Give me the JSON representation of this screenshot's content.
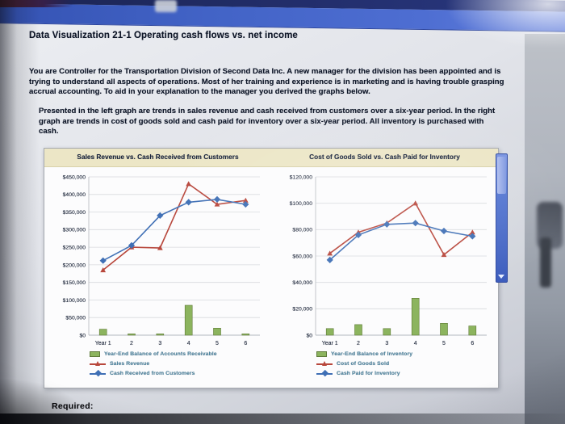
{
  "page": {
    "title": "Data Visualization 21-1 Operating cash flows vs. net income",
    "paragraph_1": "You are Controller for the Transportation Division of Second Data Inc. A new manager for the division has been appointed and is trying to understand all aspects of operations. Most of her training and experience is in marketing and is having trouble grasping accrual accounting. To aid in your explanation to the manager you derived the graphs below.",
    "paragraph_2": "Presented in the left graph are trends in sales revenue and cash received from customers over a six-year period. In the right graph are trends in cost of goods sold and cash paid for inventory over a six-year period. All inventory is purchased with cash.",
    "required_label": "Required:"
  },
  "chart_data": [
    {
      "type": "combo (bar + line)",
      "title": "Sales Revenue vs. Cash Received from Customers",
      "categories": [
        "Year 1",
        "2",
        "3",
        "4",
        "5",
        "6"
      ],
      "ylim": [
        0,
        450000
      ],
      "ytick_step": 50000,
      "grid": true,
      "legend_position": "bottom-left",
      "series": [
        {
          "name": "Year-End Balance of Accounts Receivable",
          "render": "bar",
          "color": "#8cb45e",
          "stroke": "#5e7a36",
          "values": [
            17000,
            2000,
            1000,
            85000,
            20000,
            3000
          ]
        },
        {
          "name": "Sales Revenue",
          "render": "line",
          "marker": "triangle",
          "color": "#b8473c",
          "values": [
            185000,
            250000,
            248000,
            430000,
            372000,
            383000
          ]
        },
        {
          "name": "Cash Received from Customers",
          "render": "line",
          "marker": "diamond",
          "color": "#3f6fb5",
          "values": [
            212000,
            255000,
            340000,
            378000,
            386000,
            372000
          ]
        }
      ]
    },
    {
      "type": "combo (bar + line)",
      "title": "Cost of Goods Sold vs. Cash Paid for Inventory",
      "categories": [
        "Year 1",
        "2",
        "3",
        "4",
        "5",
        "6"
      ],
      "ylim": [
        0,
        120000
      ],
      "ytick_step": 20000,
      "grid": true,
      "legend_position": "bottom-left",
      "series": [
        {
          "name": "Year-End Balance of Inventory",
          "render": "bar",
          "color": "#8cb45e",
          "stroke": "#5e7a36",
          "values": [
            5000,
            8000,
            5000,
            28000,
            9000,
            7000
          ]
        },
        {
          "name": "Cost of Goods Sold",
          "render": "line",
          "marker": "triangle",
          "color": "#b8473c",
          "values": [
            62000,
            78000,
            85000,
            100000,
            61000,
            78000
          ]
        },
        {
          "name": "Cash Paid for Inventory",
          "render": "line",
          "marker": "diamond",
          "color": "#3f6fb5",
          "values": [
            57000,
            76000,
            84000,
            85000,
            79000,
            75000
          ]
        }
      ]
    }
  ]
}
